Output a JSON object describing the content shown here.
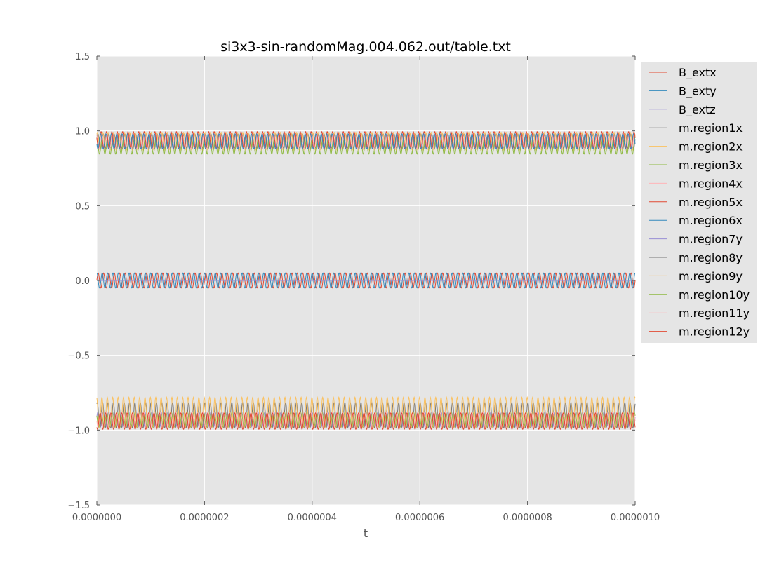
{
  "chart_data": {
    "type": "line",
    "title": "si3x3-sin-randomMag.004.062.out/table.txt",
    "xlabel": "t",
    "ylabel": "",
    "xlim": [
      0,
      1e-06
    ],
    "ylim": [
      -1.5,
      1.5
    ],
    "x_ticks": [
      "0.0000000",
      "0.0000002",
      "0.0000004",
      "0.0000006",
      "0.0000008",
      "0.0000010"
    ],
    "y_ticks": [
      "−1.5",
      "−1.0",
      "−0.5",
      "0.0",
      "0.5",
      "1.0",
      "1.5"
    ],
    "grid": true,
    "legend_position": "outside-right",
    "oscillation_cycles": 100,
    "series": [
      {
        "name": "B_extx",
        "color": "#E24A33",
        "center": 0.0,
        "amplitude": 0.05,
        "phase": 0.0
      },
      {
        "name": "B_exty",
        "color": "#348ABD",
        "center": 0.0,
        "amplitude": 0.05,
        "phase": 1.5708
      },
      {
        "name": "B_extz",
        "color": "#988ED5",
        "center": 0.0,
        "amplitude": 0.0,
        "phase": 0.0
      },
      {
        "name": "m.region1x",
        "color": "#777777",
        "center": 0.93,
        "amplitude": 0.05,
        "phase": 0.3
      },
      {
        "name": "m.region2x",
        "color": "#FBC15E",
        "center": 0.93,
        "amplitude": 0.06,
        "phase": 0.9
      },
      {
        "name": "m.region3x",
        "color": "#8EBA42",
        "center": 0.9,
        "amplitude": 0.055,
        "phase": 1.6
      },
      {
        "name": "m.region4x",
        "color": "#FFB5B8",
        "center": 0.93,
        "amplitude": 0.05,
        "phase": 2.2
      },
      {
        "name": "m.region5x",
        "color": "#E24A33",
        "center": 0.94,
        "amplitude": 0.055,
        "phase": 2.9
      },
      {
        "name": "m.region6x",
        "color": "#348ABD",
        "center": 0.93,
        "amplitude": 0.05,
        "phase": 3.5
      },
      {
        "name": "m.region7y",
        "color": "#988ED5",
        "center": -0.93,
        "amplitude": 0.05,
        "phase": 0.4
      },
      {
        "name": "m.region8y",
        "color": "#777777",
        "center": -0.9,
        "amplitude": 0.085,
        "phase": 1.1
      },
      {
        "name": "m.region9y",
        "color": "#FBC15E",
        "center": -0.88,
        "amplitude": 0.1,
        "phase": 1.9
      },
      {
        "name": "m.region10y",
        "color": "#8EBA42",
        "center": -0.93,
        "amplitude": 0.05,
        "phase": 2.6
      },
      {
        "name": "m.region11y",
        "color": "#FFB5B8",
        "center": -0.93,
        "amplitude": 0.05,
        "phase": 3.3
      },
      {
        "name": "m.region12y",
        "color": "#E24A33",
        "center": -0.94,
        "amplitude": 0.055,
        "phase": 4.0
      }
    ]
  }
}
